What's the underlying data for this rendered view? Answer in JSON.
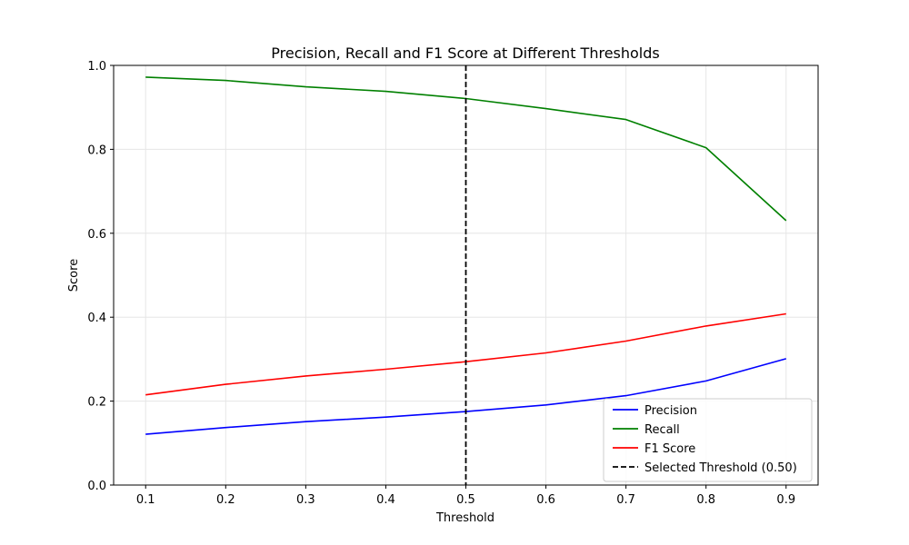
{
  "chart_data": {
    "type": "line",
    "title": "Precision, Recall and F1 Score at Different Thresholds",
    "xlabel": "Threshold",
    "ylabel": "Score",
    "x": [
      0.1,
      0.2,
      0.3,
      0.4,
      0.5,
      0.6,
      0.7,
      0.8,
      0.9
    ],
    "xticks": [
      "0.1",
      "0.2",
      "0.3",
      "0.4",
      "0.5",
      "0.6",
      "0.7",
      "0.8",
      "0.9"
    ],
    "xlim": [
      0.06,
      0.94
    ],
    "ylim": [
      0.0,
      1.0
    ],
    "yticks": [
      "0.0",
      "0.2",
      "0.4",
      "0.6",
      "0.8",
      "1.0"
    ],
    "grid": true,
    "legend_position": "lower-right",
    "series": [
      {
        "name": "Precision",
        "color": "#0000ff",
        "style": "solid",
        "values": [
          0.121,
          0.137,
          0.151,
          0.162,
          0.175,
          0.191,
          0.213,
          0.248,
          0.301
        ]
      },
      {
        "name": "Recall",
        "color": "#008000",
        "style": "solid",
        "values": [
          0.972,
          0.964,
          0.949,
          0.938,
          0.921,
          0.897,
          0.871,
          0.804,
          0.63
        ]
      },
      {
        "name": "F1 Score",
        "color": "#ff0000",
        "style": "solid",
        "values": [
          0.215,
          0.24,
          0.26,
          0.276,
          0.294,
          0.315,
          0.343,
          0.379,
          0.408
        ]
      }
    ],
    "threshold_line": {
      "name": "Selected Threshold (0.50)",
      "x": 0.5,
      "color": "#000000",
      "style": "dashed"
    }
  }
}
